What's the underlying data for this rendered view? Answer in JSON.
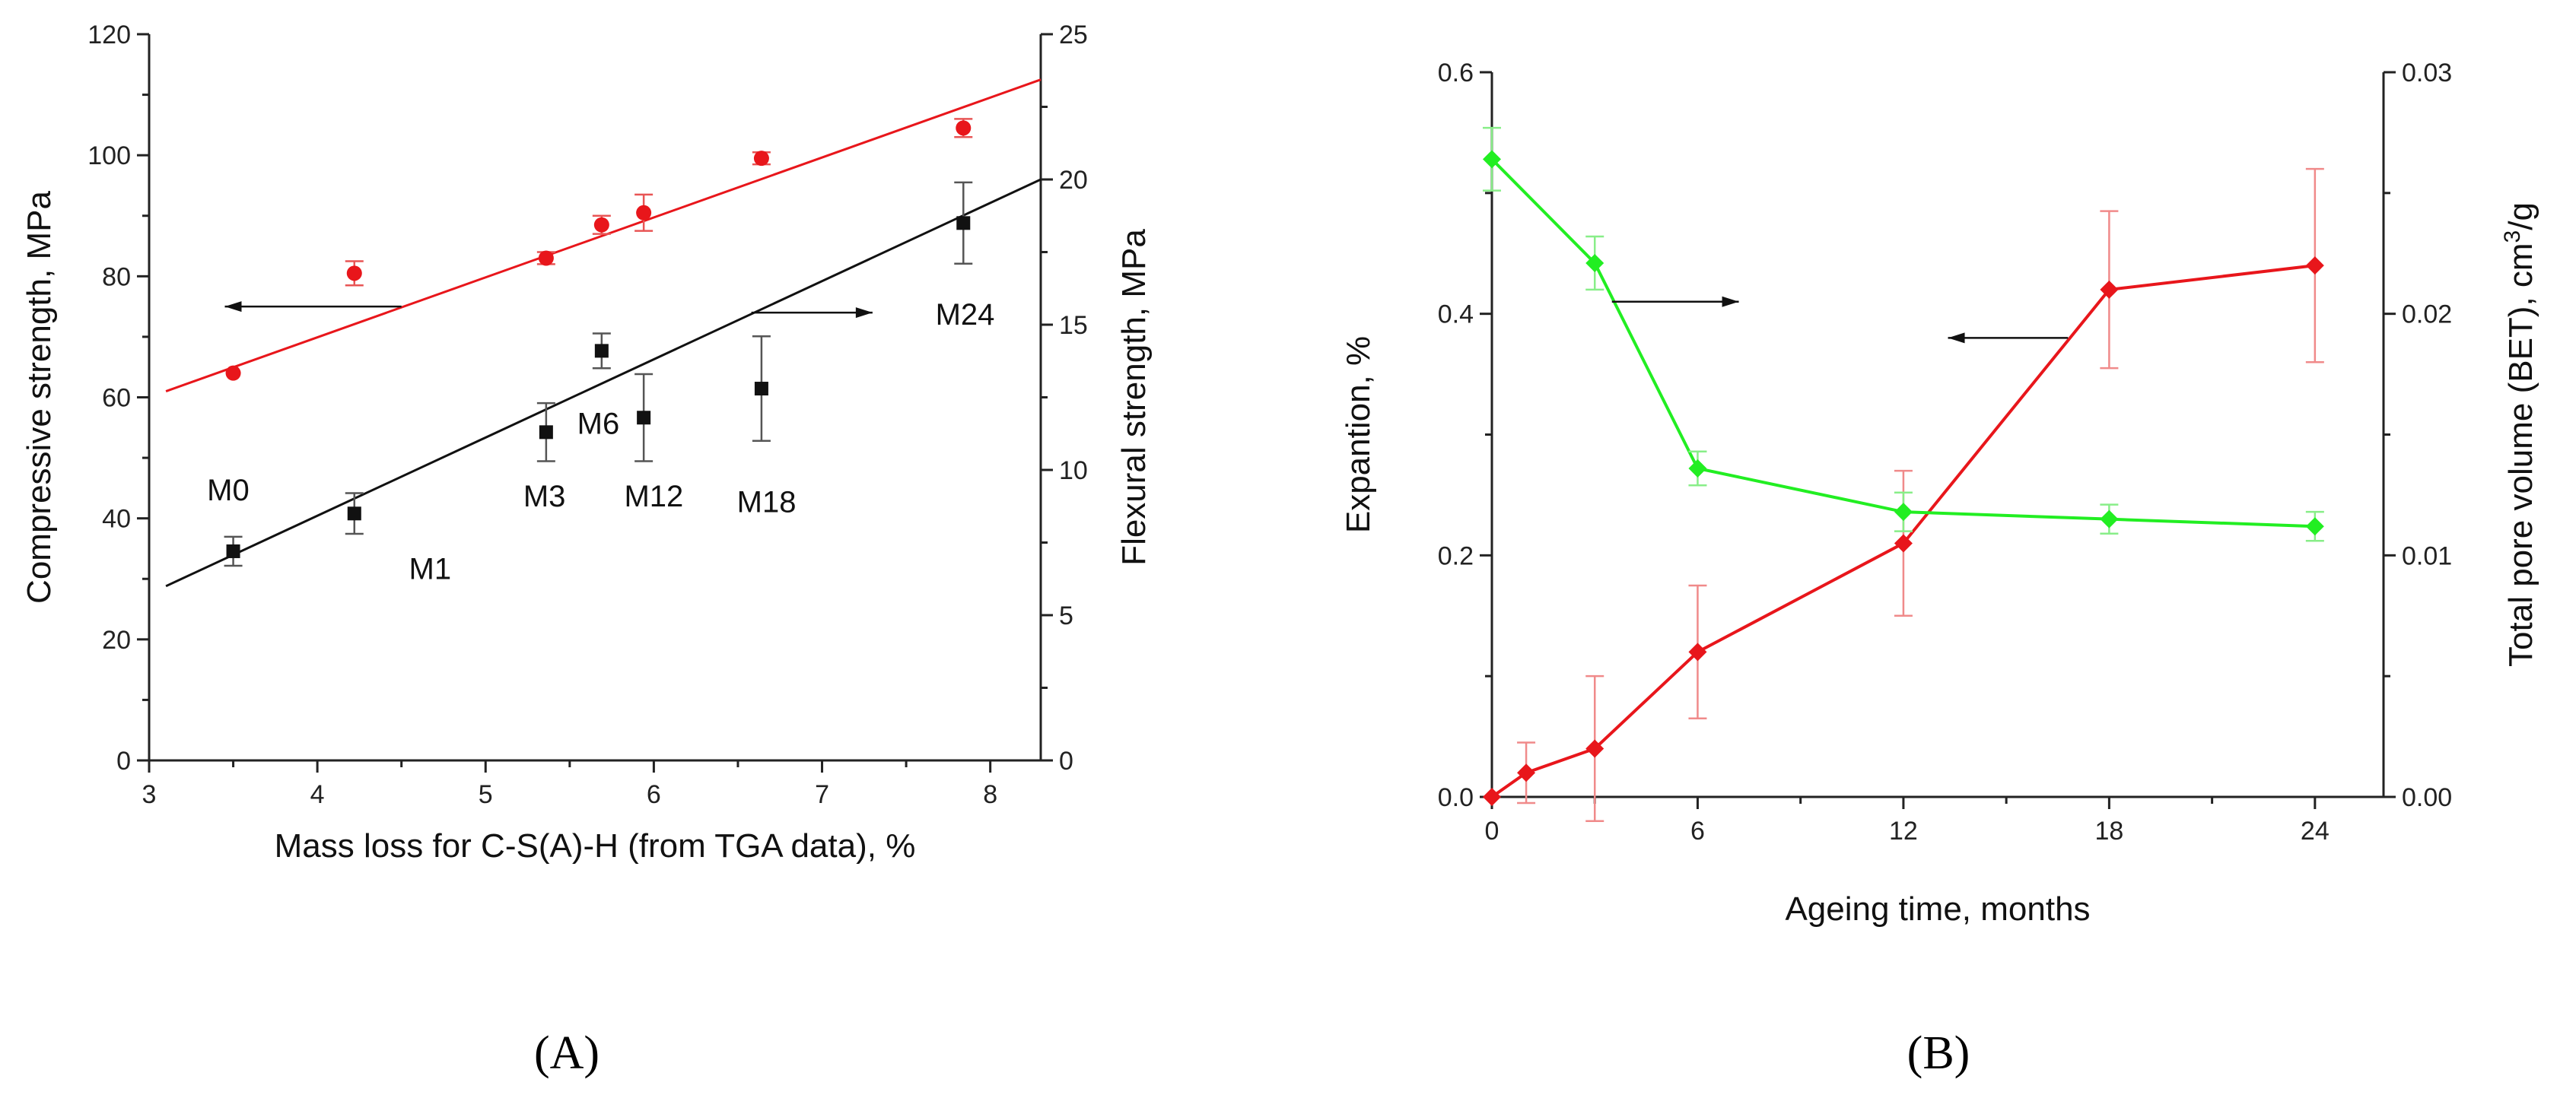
{
  "chart_data": [
    {
      "panel": "A",
      "panel_label": "(A)",
      "type": "scatter",
      "xlabel": "Mass loss for C-S(A)-H (from TGA data), %",
      "ylabel_left": "Compressive strength, MPa",
      "ylabel_right": "Flexural strength, MPa",
      "xlim": [
        3,
        8.3
      ],
      "ylim_left": [
        0,
        120
      ],
      "ylim_right": [
        0,
        25
      ],
      "x_ticks": [
        3,
        4,
        5,
        6,
        7,
        8
      ],
      "y_ticks_left": [
        0,
        20,
        40,
        60,
        80,
        100,
        120
      ],
      "y_ticks_right": [
        0,
        5,
        10,
        15,
        20,
        25
      ],
      "series": [
        {
          "name": "Compressive strength",
          "axis": "left",
          "color": "#e8161b",
          "marker": "circle",
          "x": [
            3.5,
            4.22,
            5.36,
            5.69,
            5.94,
            6.64,
            7.84
          ],
          "y": [
            64,
            80.5,
            83,
            88.5,
            90.5,
            99.5,
            104.5
          ],
          "err": [
            0,
            2,
            1,
            1.5,
            3,
            1,
            1.5
          ],
          "fit": {
            "x": [
              3.1,
              8.3
            ],
            "y": [
              61,
              112.5
            ],
            "color": "#e8161b"
          }
        },
        {
          "name": "Flexural strength",
          "axis": "right",
          "color": "#111111",
          "marker": "square",
          "x": [
            3.5,
            4.22,
            5.36,
            5.69,
            5.94,
            6.64,
            7.84
          ],
          "y": [
            7.2,
            8.5,
            11.3,
            14.1,
            11.8,
            12.8,
            18.5
          ],
          "err": [
            0.5,
            0.7,
            1.0,
            0.6,
            1.5,
            1.8,
            1.4
          ],
          "fit": {
            "x": [
              3.1,
              8.3
            ],
            "y": [
              6.0,
              20.0
            ],
            "color": "#111111"
          }
        }
      ],
      "point_labels": [
        {
          "text": "M0",
          "x": 3.47,
          "y_left": 43
        },
        {
          "text": "M1",
          "x": 4.67,
          "y_left": 30
        },
        {
          "text": "M3",
          "x": 5.35,
          "y_left": 42
        },
        {
          "text": "M6",
          "x": 5.67,
          "y_left": 54
        },
        {
          "text": "M12",
          "x": 6.0,
          "y_left": 42
        },
        {
          "text": "M18",
          "x": 6.67,
          "y_left": 41
        },
        {
          "text": "M24",
          "x": 7.85,
          "y_left": 72
        }
      ],
      "arrows": [
        {
          "direction": "left",
          "x_from": 4.5,
          "x_to": 3.45,
          "y_left": 75,
          "color": "#111111"
        },
        {
          "direction": "right",
          "x_from": 6.58,
          "x_to": 7.3,
          "y_left": 74,
          "color": "#111111"
        }
      ]
    },
    {
      "panel": "B",
      "panel_label": "(B)",
      "type": "line",
      "xlabel": "Ageing time, months",
      "ylabel_left": "Expantion, %",
      "ylabel_right": "Total pore volume (BET), cm",
      "ylabel_right_sup": "3",
      "ylabel_right_tail": "/g",
      "xlim": [
        0,
        26
      ],
      "ylim_left": [
        0,
        0.6
      ],
      "ylim_right": [
        0,
        0.03
      ],
      "x_ticks": [
        0,
        6,
        12,
        18,
        24
      ],
      "y_ticks_left": [
        0.0,
        0.2,
        0.4,
        0.6
      ],
      "y_ticks_left_text": [
        "0.0",
        "0.2",
        "0.4",
        "0.6"
      ],
      "y_ticks_right": [
        0.0,
        0.01,
        0.02,
        0.03
      ],
      "y_ticks_right_text": [
        "0.00",
        "0.01",
        "0.02",
        "0.03"
      ],
      "series": [
        {
          "name": "Expantion",
          "axis": "left",
          "color": "#e8161b",
          "marker": "diamond",
          "x": [
            0,
            1,
            3,
            6,
            12,
            18,
            24
          ],
          "y": [
            0.0,
            0.02,
            0.04,
            0.12,
            0.21,
            0.42,
            0.44
          ],
          "err": [
            0,
            0.025,
            0.06,
            0.055,
            0.06,
            0.065,
            0.08
          ]
        },
        {
          "name": "Total pore volume (BET)",
          "axis": "right",
          "color": "#22ee22",
          "marker": "diamond",
          "x": [
            0,
            3,
            6,
            12,
            18,
            24
          ],
          "y": [
            0.0264,
            0.0221,
            0.0136,
            0.0118,
            0.0115,
            0.0112
          ],
          "err": [
            0.0013,
            0.0011,
            0.0007,
            0.0008,
            0.0006,
            0.0006
          ]
        }
      ],
      "arrows": [
        {
          "direction": "right",
          "x_from": 3.5,
          "x_to": 7.2,
          "y_left": 0.41,
          "color": "#111111"
        },
        {
          "direction": "left",
          "x_from": 16.8,
          "x_to": 13.3,
          "y_left": 0.38,
          "color": "#111111"
        }
      ]
    }
  ]
}
